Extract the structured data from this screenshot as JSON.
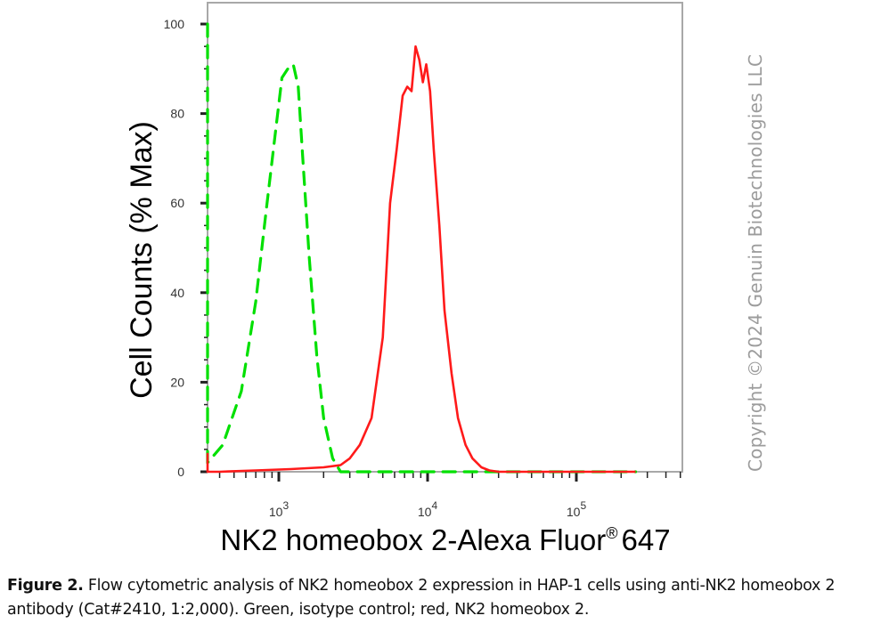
{
  "chart_data": {
    "type": "line",
    "title": "",
    "xlabel": "NK2 homeobox 2-Alexa Fluor® 647",
    "xlabel_main": "NK2 homeobox 2-Alexa Fluor",
    "xlabel_sup": "®",
    "xlabel_tail": "647",
    "ylabel": "Cell Counts (% Max)",
    "x_scale": "log",
    "xlim": [
      200,
      250000
    ],
    "ylim": [
      0,
      100
    ],
    "y_ticks": [
      0,
      20,
      40,
      60,
      80,
      100
    ],
    "x_ticks": [
      {
        "base": "10",
        "exp": "3",
        "value": 1000
      },
      {
        "base": "10",
        "exp": "4",
        "value": 10000
      },
      {
        "base": "10",
        "exp": "5",
        "value": 100000
      }
    ],
    "grid": false,
    "legend": "none (described in caption)",
    "series": [
      {
        "name": "Isotype control",
        "color": "#00e000",
        "style": "dashed",
        "x": [
          200,
          230,
          300,
          420,
          560,
          700,
          820,
          950,
          1050,
          1150,
          1250,
          1350,
          1450,
          1600,
          1800,
          2000,
          2300,
          2600,
          3000,
          5000,
          10000,
          50000,
          250000
        ],
        "y": [
          100,
          2,
          2,
          6,
          18,
          38,
          58,
          76,
          88,
          90,
          91,
          86,
          70,
          48,
          26,
          12,
          3,
          0,
          0,
          0,
          0,
          0,
          0
        ]
      },
      {
        "name": "NK2 homeobox 2",
        "color": "#ff1a1a",
        "style": "solid",
        "x": [
          200,
          215,
          240,
          400,
          700,
          1200,
          2000,
          2600,
          3000,
          3500,
          4200,
          5000,
          5600,
          6200,
          6800,
          7300,
          7800,
          8300,
          8800,
          9300,
          9800,
          10400,
          11000,
          12000,
          13000,
          14500,
          16000,
          18000,
          20000,
          23000,
          26000,
          30000,
          35000,
          50000,
          100000,
          250000
        ],
        "y": [
          0,
          4,
          0,
          0,
          0.3,
          0.6,
          1,
          1.5,
          3,
          6,
          12,
          30,
          60,
          72,
          84,
          86,
          85,
          95,
          92,
          87,
          91,
          85,
          72,
          55,
          36,
          22,
          12,
          6,
          3,
          1,
          0.3,
          0,
          0,
          0,
          0,
          0
        ]
      }
    ]
  },
  "watermark": "Copyright ©2024 Genuin Biotechnologies LLC",
  "caption": {
    "label": "Figure 2.",
    "text": " Flow cytometric analysis of NK2 homeobox 2 expression in HAP-1 cells using anti-NK2 homeobox 2 antibody (Cat#2410, 1:2,000). Green, isotype control; red, NK2 homeobox 2."
  },
  "colors": {
    "frame": "#a0a0a0",
    "axis_tick": "#222222",
    "isotype": "#00e000",
    "target": "#ff1a1a"
  }
}
